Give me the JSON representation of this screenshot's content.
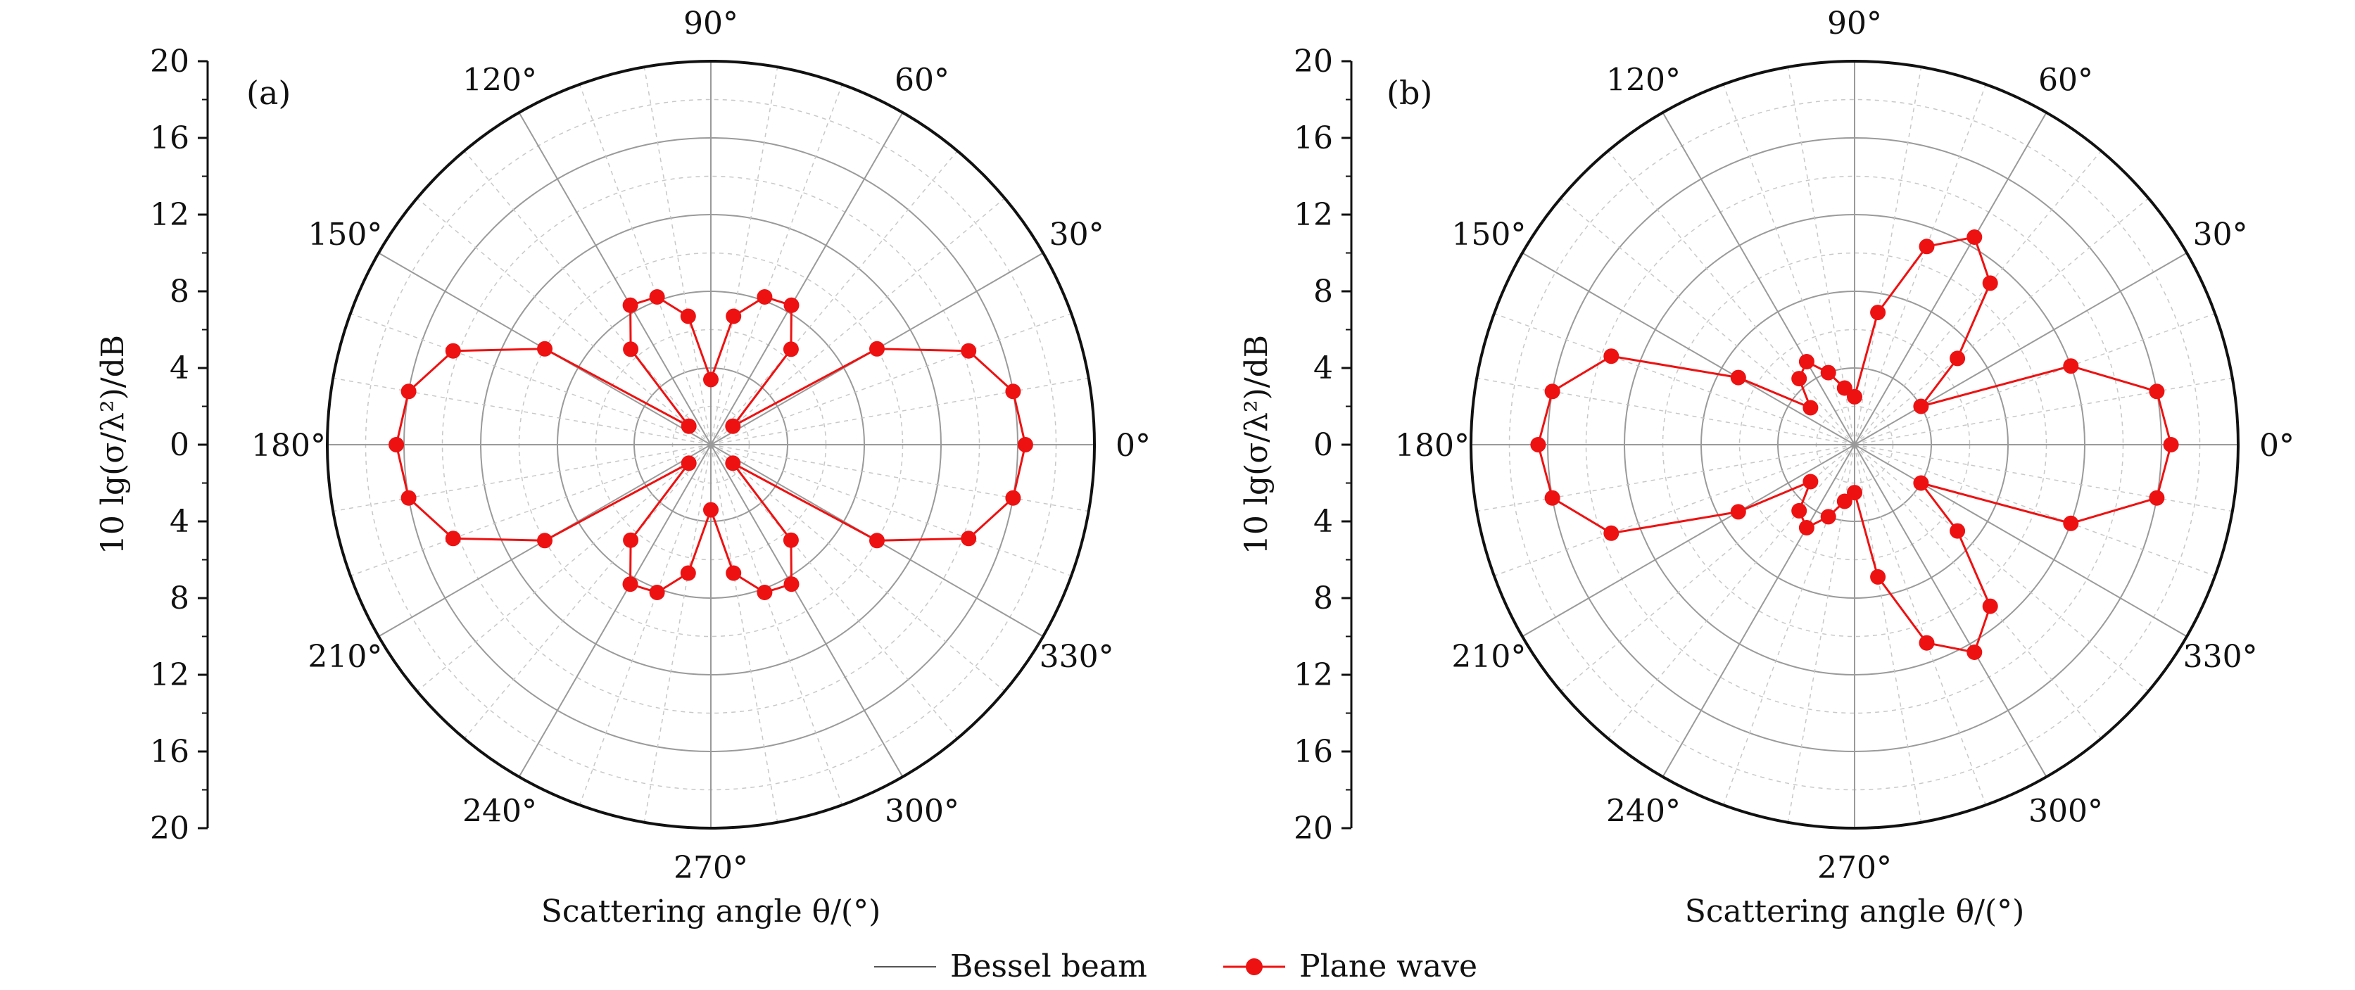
{
  "chart_data": [
    {
      "type": "polar",
      "panel_label": "(a)",
      "radial_ticks": [
        "20",
        "16",
        "12",
        "8",
        "4",
        "0",
        "4",
        "8",
        "12",
        "16",
        "20"
      ],
      "angle_labels": [
        "0°",
        "30°",
        "60°",
        "90°",
        "120°",
        "150°",
        "180°",
        "210°",
        "240°",
        "270°",
        "300°",
        "330°"
      ],
      "ylabel": "10 lg(σ/λ²)/dB",
      "xlabel": "Scattering angle θ/(°)",
      "r_range": [
        0,
        20
      ],
      "grid": true,
      "series": [
        {
          "name": "Bessel beam",
          "color": "#555555",
          "style": "line",
          "points": [
            [
              0,
              16.4
            ],
            [
              10,
              16
            ],
            [
              20,
              14.3
            ],
            [
              30,
              10
            ],
            [
              40,
              1.5
            ],
            [
              50,
              6.5
            ],
            [
              60,
              8.4
            ],
            [
              70,
              8.2
            ],
            [
              80,
              6.8
            ],
            [
              90,
              3.4
            ],
            [
              100,
              6.8
            ],
            [
              110,
              8.2
            ],
            [
              120,
              8.4
            ],
            [
              130,
              6.5
            ],
            [
              140,
              1.5
            ],
            [
              150,
              10
            ],
            [
              160,
              14.3
            ],
            [
              170,
              16
            ],
            [
              180,
              16.4
            ],
            [
              190,
              16
            ],
            [
              200,
              14.3
            ],
            [
              210,
              10
            ],
            [
              220,
              1.5
            ],
            [
              230,
              6.5
            ],
            [
              240,
              8.4
            ],
            [
              250,
              8.2
            ],
            [
              260,
              6.8
            ],
            [
              270,
              3.4
            ],
            [
              280,
              6.8
            ],
            [
              290,
              8.2
            ],
            [
              300,
              8.4
            ],
            [
              310,
              6.5
            ],
            [
              320,
              1.5
            ],
            [
              330,
              10
            ],
            [
              340,
              14.3
            ],
            [
              350,
              16
            ],
            [
              360,
              16.4
            ]
          ]
        },
        {
          "name": "Plane wave",
          "color": "#ee1111",
          "style": "line+marker",
          "points": [
            [
              0,
              16.4
            ],
            [
              10,
              16
            ],
            [
              20,
              14.3
            ],
            [
              30,
              10
            ],
            [
              40,
              1.5
            ],
            [
              50,
              6.5
            ],
            [
              60,
              8.4
            ],
            [
              70,
              8.2
            ],
            [
              80,
              6.8
            ],
            [
              90,
              3.4
            ],
            [
              100,
              6.8
            ],
            [
              110,
              8.2
            ],
            [
              120,
              8.4
            ],
            [
              130,
              6.5
            ],
            [
              140,
              1.5
            ],
            [
              150,
              10
            ],
            [
              160,
              14.3
            ],
            [
              170,
              16
            ],
            [
              180,
              16.4
            ],
            [
              190,
              16
            ],
            [
              200,
              14.3
            ],
            [
              210,
              10
            ],
            [
              220,
              1.5
            ],
            [
              230,
              6.5
            ],
            [
              240,
              8.4
            ],
            [
              250,
              8.2
            ],
            [
              260,
              6.8
            ],
            [
              270,
              3.4
            ],
            [
              280,
              6.8
            ],
            [
              290,
              8.2
            ],
            [
              300,
              8.4
            ],
            [
              310,
              6.5
            ],
            [
              320,
              1.5
            ],
            [
              330,
              10
            ],
            [
              340,
              14.3
            ],
            [
              350,
              16
            ],
            [
              360,
              16.4
            ]
          ]
        }
      ]
    },
    {
      "type": "polar",
      "panel_label": "(b)",
      "radial_ticks": [
        "20",
        "16",
        "12",
        "8",
        "4",
        "0",
        "4",
        "8",
        "12",
        "16",
        "20"
      ],
      "angle_labels": [
        "0°",
        "30°",
        "60°",
        "90°",
        "120°",
        "150°",
        "180°",
        "210°",
        "240°",
        "270°",
        "300°",
        "330°"
      ],
      "ylabel": "10 lg(σ/λ²)/dB",
      "xlabel": "Scattering angle θ/(°)",
      "r_range": [
        0,
        20
      ],
      "grid": true,
      "series": [
        {
          "name": "Bessel beam",
          "color": "#555555",
          "style": "line",
          "points": [
            [
              0,
              16.5
            ],
            [
              10,
              16
            ],
            [
              20,
              12
            ],
            [
              30,
              4
            ],
            [
              40,
              7
            ],
            [
              50,
              11
            ],
            [
              60,
              12.5
            ],
            [
              70,
              11
            ],
            [
              80,
              7
            ],
            [
              90,
              2.5
            ],
            [
              100,
              3
            ],
            [
              110,
              4
            ],
            [
              120,
              5
            ],
            [
              130,
              4.5
            ],
            [
              140,
              3
            ],
            [
              150,
              7
            ],
            [
              160,
              13.5
            ],
            [
              170,
              16
            ],
            [
              180,
              16.5
            ],
            [
              190,
              16
            ],
            [
              200,
              13.5
            ],
            [
              210,
              7
            ],
            [
              220,
              3
            ],
            [
              230,
              4.5
            ],
            [
              240,
              5
            ],
            [
              250,
              4
            ],
            [
              260,
              3
            ],
            [
              270,
              2.5
            ],
            [
              280,
              7
            ],
            [
              290,
              11
            ],
            [
              300,
              12.5
            ],
            [
              310,
              11
            ],
            [
              320,
              7
            ],
            [
              330,
              4
            ],
            [
              340,
              12
            ],
            [
              350,
              16
            ],
            [
              360,
              16.5
            ]
          ]
        },
        {
          "name": "Plane wave",
          "color": "#ee1111",
          "style": "line+marker",
          "points": [
            [
              0,
              16.5
            ],
            [
              10,
              16
            ],
            [
              20,
              12
            ],
            [
              30,
              4
            ],
            [
              40,
              7
            ],
            [
              50,
              11
            ],
            [
              60,
              12.5
            ],
            [
              70,
              11
            ],
            [
              80,
              7
            ],
            [
              90,
              2.5
            ],
            [
              100,
              3
            ],
            [
              110,
              4
            ],
            [
              120,
              5
            ],
            [
              130,
              4.5
            ],
            [
              140,
              3
            ],
            [
              150,
              7
            ],
            [
              160,
              13.5
            ],
            [
              170,
              16
            ],
            [
              180,
              16.5
            ],
            [
              190,
              16
            ],
            [
              200,
              13.5
            ],
            [
              210,
              7
            ],
            [
              220,
              3
            ],
            [
              230,
              4.5
            ],
            [
              240,
              5
            ],
            [
              250,
              4
            ],
            [
              260,
              3
            ],
            [
              270,
              2.5
            ],
            [
              280,
              7
            ],
            [
              290,
              11
            ],
            [
              300,
              12.5
            ],
            [
              310,
              11
            ],
            [
              320,
              7
            ],
            [
              330,
              4
            ],
            [
              340,
              12
            ],
            [
              350,
              16
            ],
            [
              360,
              16.5
            ]
          ]
        }
      ]
    }
  ],
  "legend": {
    "placement": "bottom-center",
    "items": [
      {
        "label": "Bessel beam",
        "color": "#555555",
        "marker": false
      },
      {
        "label": "Plane wave",
        "color": "#ee1111",
        "marker": true
      }
    ]
  }
}
